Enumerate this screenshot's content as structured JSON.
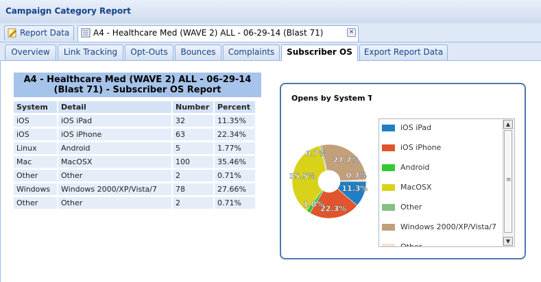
{
  "window": {
    "title": "Campaign Category Report"
  },
  "doc_tabs": [
    {
      "label": "Report Data",
      "icon": "pencil-icon"
    },
    {
      "label": "A4 - Healthcare Med (WAVE 2) ALL - 06-29-14 (Blast 71)",
      "icon": "document-icon",
      "close": "×"
    }
  ],
  "report_tabs": [
    "Overview",
    "Link Tracking",
    "Opt-Outs",
    "Bounces",
    "Complaints",
    "Subscriber OS",
    "Export Report Data"
  ],
  "active_report_tab": "Subscriber OS",
  "report": {
    "title_line1": "A4 - Healthcare Med (WAVE 2) ALL - 06-29-14",
    "title_line2": "(Blast 71) - Subscriber OS Report",
    "columns": [
      "System",
      "Detail",
      "Number",
      "Percent"
    ],
    "rows": [
      [
        "iOS",
        "iOS iPad",
        "32",
        "11.35%"
      ],
      [
        "iOS",
        "iOS iPhone",
        "63",
        "22.34%"
      ],
      [
        "Linux",
        "Android",
        "5",
        "1.77%"
      ],
      [
        "Mac",
        "MacOSX",
        "100",
        "35.46%"
      ],
      [
        "Other",
        "Other",
        "2",
        "0.71%"
      ],
      [
        "Windows",
        "Windows 2000/XP/Vista/7",
        "78",
        "27.66%"
      ],
      [
        "Other",
        "Other",
        "2",
        "0.71%"
      ]
    ]
  },
  "chart": {
    "title": "Opens by System Ty|",
    "scroll_up": "▲",
    "scroll_down": "▼",
    "scroll_grip": "≡"
  },
  "chart_data": {
    "type": "pie",
    "slices": [
      {
        "label": "iOS iPad",
        "value": 11.35,
        "display": "11.3%",
        "color": "#1f7fc4"
      },
      {
        "label": "iOS iPhone",
        "value": 22.34,
        "display": "22.3%",
        "color": "#e0552b"
      },
      {
        "label": "Android",
        "value": 1.77,
        "display": "1.8%",
        "color": "#2fcb2f"
      },
      {
        "label": "MacOSX",
        "value": 35.46,
        "display": "35.5%",
        "color": "#d9d21a"
      },
      {
        "label": "Other",
        "value": 0.71,
        "display": "0.7%",
        "color": "#86c084"
      },
      {
        "label": "Windows 2000/XP/Vista/7",
        "value": 27.66,
        "display": "27.7%",
        "color": "#c2a07a"
      },
      {
        "label": "Other",
        "value": 0.71,
        "display": "0.7%",
        "color": "#f6e2d2"
      }
    ]
  }
}
